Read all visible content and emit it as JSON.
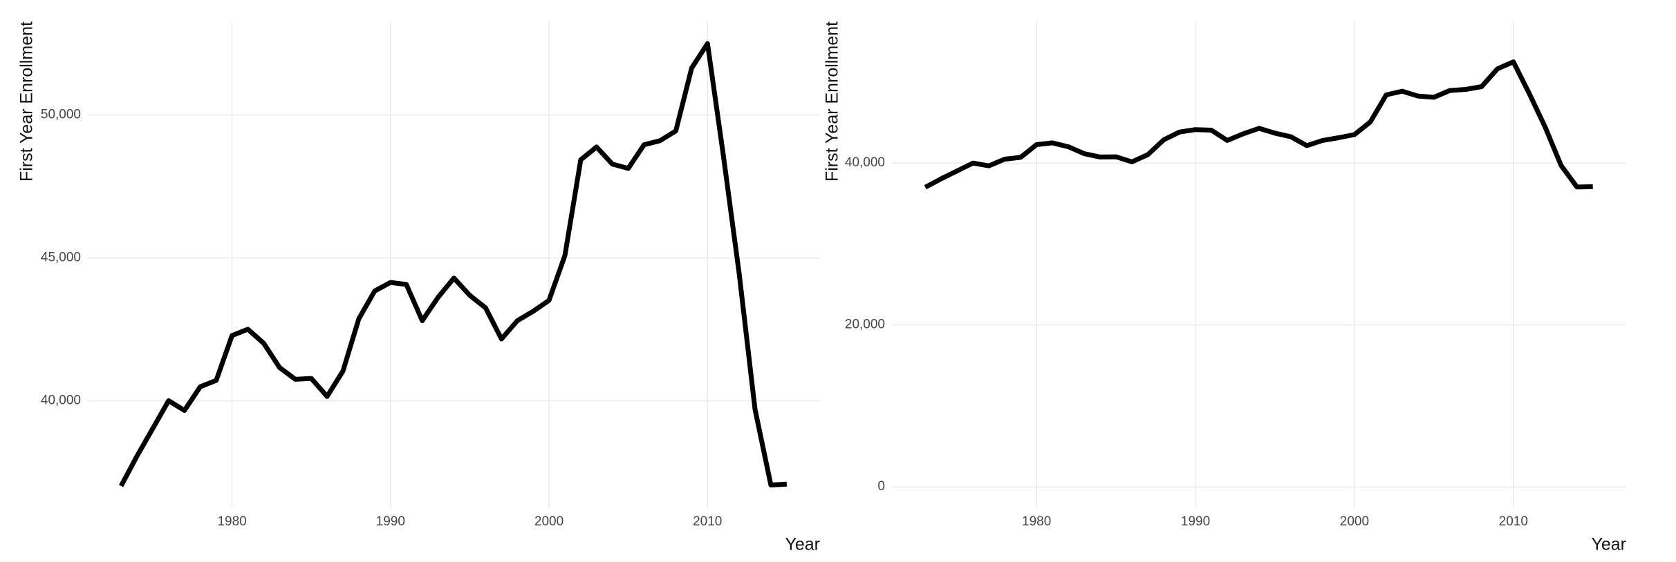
{
  "chart_data": [
    {
      "type": "line",
      "y_label": "First Year Enrollment",
      "x_label": "Year",
      "x": [
        1973,
        1974,
        1975,
        1976,
        1977,
        1978,
        1979,
        1980,
        1981,
        1982,
        1983,
        1984,
        1985,
        1986,
        1987,
        1988,
        1989,
        1990,
        1991,
        1992,
        1993,
        1994,
        1995,
        1996,
        1997,
        1998,
        1999,
        2000,
        2001,
        2002,
        2003,
        2004,
        2005,
        2006,
        2007,
        2008,
        2009,
        2010,
        2011,
        2012,
        2013,
        2014,
        2015
      ],
      "series": [
        {
          "color": "#000000",
          "values": [
            37015,
            38060,
            39030,
            40000,
            39660,
            40490,
            40710,
            42280,
            42500,
            42010,
            41160,
            40750,
            40780,
            40150,
            41040,
            42870,
            43840,
            44140,
            44070,
            42800,
            43620,
            44290,
            43690,
            43250,
            42160,
            42800,
            43130,
            43510,
            45080,
            48430,
            48880,
            48280,
            48130,
            48960,
            49100,
            49440,
            51640,
            52500,
            48580,
            44440,
            39700,
            37050,
            37080
          ]
        }
      ],
      "xlim": [
        1970.9,
        2017.1
      ],
      "xticks": [
        1980,
        1990,
        2000,
        2010
      ],
      "ylim": [
        36240,
        53275
      ],
      "yticks": [
        {
          "value": 40000,
          "label": "40,000"
        },
        {
          "value": 45000,
          "label": "45,000"
        },
        {
          "value": 50000,
          "label": "50,000"
        }
      ],
      "grid": true
    },
    {
      "type": "line",
      "y_label": "First Year Enrollment",
      "x_label": "Year",
      "x": [
        1973,
        1974,
        1975,
        1976,
        1977,
        1978,
        1979,
        1980,
        1981,
        1982,
        1983,
        1984,
        1985,
        1986,
        1987,
        1988,
        1989,
        1990,
        1991,
        1992,
        1993,
        1994,
        1995,
        1996,
        1997,
        1998,
        1999,
        2000,
        2001,
        2002,
        2003,
        2004,
        2005,
        2006,
        2007,
        2008,
        2009,
        2010,
        2011,
        2012,
        2013,
        2014,
        2015
      ],
      "series": [
        {
          "color": "#000000",
          "values": [
            37015,
            38060,
            39030,
            40000,
            39660,
            40490,
            40710,
            42280,
            42500,
            42010,
            41160,
            40750,
            40780,
            40150,
            41040,
            42870,
            43840,
            44140,
            44070,
            42800,
            43620,
            44290,
            43690,
            43250,
            42160,
            42800,
            43130,
            43510,
            45080,
            48430,
            48880,
            48280,
            48130,
            48960,
            49100,
            49440,
            51640,
            52500,
            48580,
            44440,
            39700,
            37050,
            37080
          ]
        }
      ],
      "xlim": [
        1970.9,
        2017.1
      ],
      "xticks": [
        1980,
        1990,
        2000,
        2010
      ],
      "ylim": [
        -2625,
        57500
      ],
      "yticks": [
        0,
        {
          "value": 20000,
          "label": "20,000"
        },
        {
          "value": 40000,
          "label": "40,000"
        }
      ],
      "grid": true
    }
  ]
}
